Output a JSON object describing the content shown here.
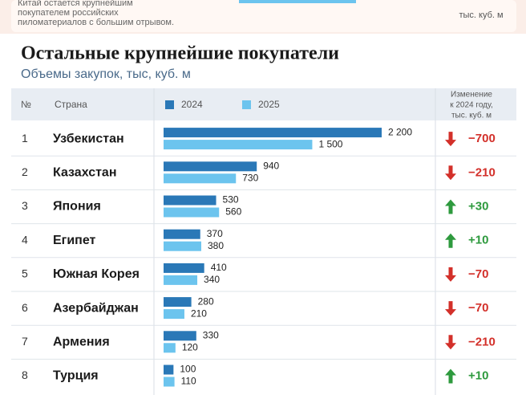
{
  "caption": [
    "Китай остается крупнейшим",
    "покупателем российских",
    "пиломатериалов с большим отрывом."
  ],
  "top_unit": "тыс. куб. м",
  "chart_data": {
    "type": "bar",
    "orientation": "horizontal",
    "title": "Остальные крупнейшие покупатели",
    "subtitle": "Объемы закупок, тыс, куб. м",
    "headers": {
      "rank": "№",
      "country": "Страна",
      "change": [
        "Изменение",
        "к 2024 году,",
        "тыс. куб. м"
      ]
    },
    "ranks": [
      1,
      2,
      3,
      4,
      5,
      6,
      7,
      8
    ],
    "categories": [
      "Узбекистан",
      "Казахстан",
      "Япония",
      "Египет",
      "Южная Корея",
      "Азербайджан",
      "Армения",
      "Турция"
    ],
    "series": [
      {
        "name": "2024",
        "color": "#2a78b7",
        "values": [
          2200,
          940,
          530,
          370,
          410,
          280,
          330,
          100
        ],
        "value_labels": [
          "2 200",
          "940",
          "530",
          "370",
          "410",
          "280",
          "330",
          "100"
        ]
      },
      {
        "name": "2025",
        "color": "#6cc4ee",
        "values": [
          1500,
          730,
          560,
          380,
          340,
          210,
          120,
          110
        ],
        "value_labels": [
          "1 500",
          "730",
          "560",
          "380",
          "340",
          "210",
          "120",
          "110"
        ]
      }
    ],
    "change": {
      "values": [
        -700,
        -210,
        30,
        10,
        -70,
        -70,
        -210,
        10
      ],
      "value_labels": [
        "−700",
        "−210",
        "+30",
        "+10",
        "−70",
        "−70",
        "−210",
        "+10"
      ]
    },
    "change_colors": {
      "down": "#d3302a",
      "up": "#2e9a3e"
    },
    "xlim": [
      0,
      2200
    ]
  }
}
